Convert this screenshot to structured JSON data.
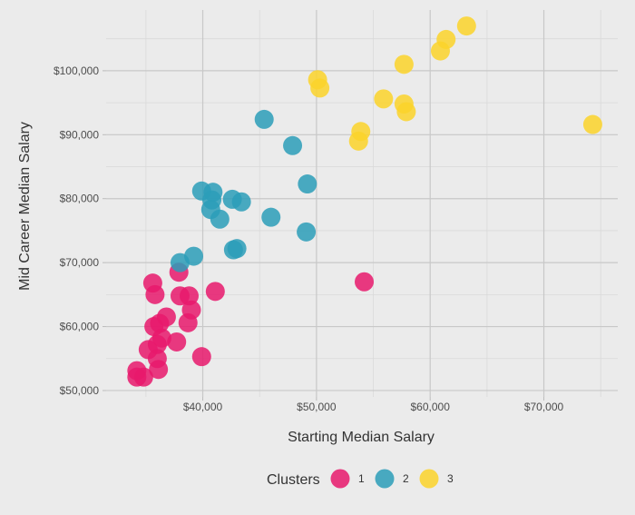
{
  "chart_data": {
    "type": "scatter",
    "xlabel": "Starting Median Salary",
    "ylabel": "Mid Career Median Salary",
    "xlim": [
      31500,
      76500
    ],
    "ylim": [
      49000,
      109500
    ],
    "x_ticks": [
      {
        "value": 40000,
        "label": "$40,000"
      },
      {
        "value": 50000,
        "label": "$50,000"
      },
      {
        "value": 60000,
        "label": "$60,000"
      },
      {
        "value": 70000,
        "label": "$70,000"
      }
    ],
    "y_ticks": [
      {
        "value": 50000,
        "label": "$50,000"
      },
      {
        "value": 60000,
        "label": "$60,000"
      },
      {
        "value": 70000,
        "label": "$70,000"
      },
      {
        "value": 80000,
        "label": "$80,000"
      },
      {
        "value": 90000,
        "label": "$90,000"
      },
      {
        "value": 100000,
        "label": "$100,000"
      }
    ],
    "grid": true,
    "legend": {
      "title": "Clusters",
      "position": "bottom"
    },
    "series": [
      {
        "name": "1",
        "color": "#e7196c",
        "points": [
          [
            35600,
            66800
          ],
          [
            35800,
            65000
          ],
          [
            37900,
            68500
          ],
          [
            38000,
            64800
          ],
          [
            38800,
            64800
          ],
          [
            41100,
            65500
          ],
          [
            36800,
            61500
          ],
          [
            35700,
            60000
          ],
          [
            36200,
            60500
          ],
          [
            39000,
            62600
          ],
          [
            38700,
            60600
          ],
          [
            36400,
            58200
          ],
          [
            37700,
            57600
          ],
          [
            35200,
            56400
          ],
          [
            36000,
            57200
          ],
          [
            36000,
            55000
          ],
          [
            39900,
            55300
          ],
          [
            34200,
            53100
          ],
          [
            36100,
            53300
          ],
          [
            34200,
            52100
          ],
          [
            34800,
            52100
          ],
          [
            54200,
            67000
          ]
        ]
      },
      {
        "name": "2",
        "color": "#2c9eb8",
        "points": [
          [
            45400,
            92400
          ],
          [
            47900,
            88300
          ],
          [
            49200,
            82300
          ],
          [
            39900,
            81200
          ],
          [
            40900,
            81000
          ],
          [
            40800,
            79800
          ],
          [
            40700,
            78300
          ],
          [
            42600,
            79900
          ],
          [
            43400,
            79500
          ],
          [
            41500,
            76800
          ],
          [
            46000,
            77100
          ],
          [
            49100,
            74800
          ],
          [
            42700,
            72000
          ],
          [
            43000,
            72200
          ],
          [
            39200,
            71000
          ],
          [
            38000,
            70000
          ]
        ]
      },
      {
        "name": "3",
        "color": "#fbd42a",
        "points": [
          [
            63200,
            107000
          ],
          [
            61400,
            104900
          ],
          [
            60900,
            103100
          ],
          [
            57700,
            101000
          ],
          [
            50100,
            98600
          ],
          [
            50300,
            97300
          ],
          [
            55900,
            95600
          ],
          [
            57700,
            94800
          ],
          [
            57900,
            93600
          ],
          [
            53900,
            90500
          ],
          [
            53700,
            89000
          ],
          [
            74300,
            91600
          ]
        ]
      }
    ]
  }
}
